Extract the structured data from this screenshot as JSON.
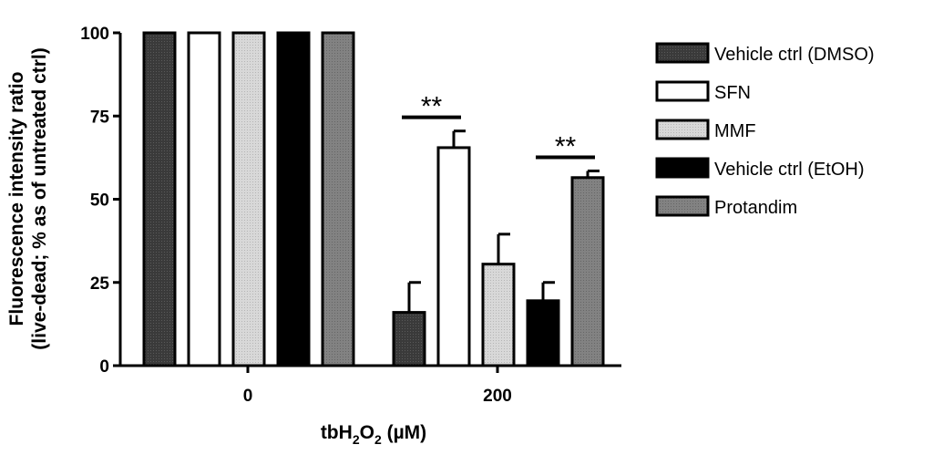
{
  "chart_data": {
    "type": "bar",
    "title": "",
    "xlabel": {
      "base": "tbH",
      "sub1": "2",
      "mid": "O",
      "sub2": "2",
      "unit": " (µM)"
    },
    "ylabel_line1": "Fluorescence intensity ratio",
    "ylabel_line2": "(live-dead; % as of untreated ctrl)",
    "ylim": [
      0,
      100
    ],
    "yticks": [
      "0",
      "25",
      "50",
      "75",
      "100"
    ],
    "categories": [
      "0",
      "200"
    ],
    "series": [
      {
        "name": "Vehicle ctrl (DMSO)",
        "values": [
          100,
          16
        ],
        "errors": [
          0,
          9
        ],
        "fill": "#3a3a3a",
        "pattern": "dots-light"
      },
      {
        "name": "SFN",
        "values": [
          100,
          65.5
        ],
        "errors": [
          0,
          5
        ],
        "fill": "#ffffff",
        "pattern": "none"
      },
      {
        "name": "MMF",
        "values": [
          100,
          30.5
        ],
        "errors": [
          0,
          9
        ],
        "fill": "#d8d8d8",
        "pattern": "dots-dark"
      },
      {
        "name": "Vehicle ctrl (EtOH)",
        "values": [
          100,
          19.5
        ],
        "errors": [
          0,
          5.5
        ],
        "fill": "#000000",
        "pattern": "none"
      },
      {
        "name": "Protandim",
        "values": [
          100,
          56.5
        ],
        "errors": [
          0,
          2
        ],
        "fill": "#828282",
        "pattern": "dots-dark"
      }
    ],
    "significance": [
      {
        "label": "**",
        "category": "200",
        "series_from": 0,
        "series_to": 1
      },
      {
        "label": "**",
        "category": "200",
        "series_from": 3,
        "series_to": 4
      }
    ],
    "legend_position": "right",
    "grid": false
  }
}
